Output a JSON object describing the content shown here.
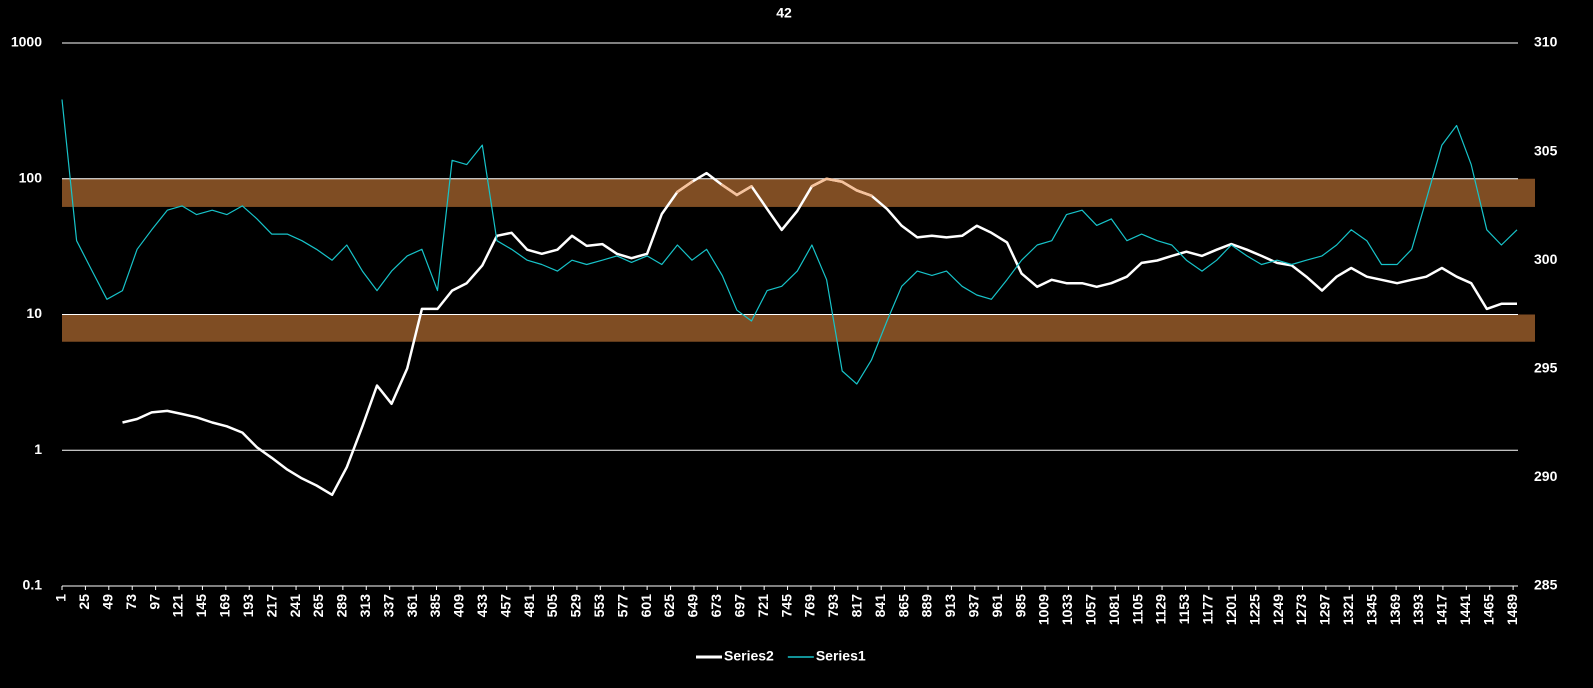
{
  "chart_data": {
    "type": "line",
    "title": "42",
    "x": [
      1,
      16,
      32,
      47,
      63,
      78,
      93,
      109,
      124,
      139,
      155,
      170,
      186,
      201,
      216,
      232,
      247,
      262,
      278,
      293,
      309,
      324,
      339,
      355,
      370,
      386,
      401,
      416,
      432,
      447,
      462,
      478,
      493,
      509,
      524,
      539,
      555,
      570,
      585,
      601,
      616,
      632,
      647,
      662,
      678,
      693,
      708,
      724,
      739,
      755,
      770,
      785,
      801,
      816,
      831,
      847,
      862,
      878,
      893,
      908,
      924,
      939,
      954,
      970,
      985,
      1001,
      1016,
      1031,
      1047,
      1062,
      1077,
      1093,
      1108,
      1124,
      1139,
      1154,
      1170,
      1185,
      1200,
      1216,
      1231,
      1247,
      1262,
      1277,
      1293,
      1308,
      1323,
      1339,
      1354,
      1370,
      1385,
      1400,
      1416,
      1431,
      1446,
      1462,
      1477,
      1493
    ],
    "series": [
      {
        "name": "Series2",
        "color": "#ffffff",
        "axis": "y",
        "values": [
          null,
          null,
          null,
          null,
          1.6,
          1.7,
          1.9,
          1.95,
          1.85,
          1.75,
          1.6,
          1.5,
          1.35,
          1.05,
          0.88,
          0.72,
          0.62,
          0.55,
          0.47,
          0.75,
          1.5,
          3.0,
          2.2,
          4,
          11,
          11,
          15,
          17,
          23,
          38,
          40,
          30,
          28,
          30,
          38,
          32,
          33,
          28,
          26,
          28,
          55,
          80,
          95,
          110,
          90,
          76,
          88,
          60,
          42,
          58,
          88,
          100,
          95,
          82,
          75,
          60,
          45,
          37,
          38,
          37,
          38,
          45,
          40,
          34,
          20,
          16,
          18,
          17,
          17,
          16,
          17,
          19,
          24,
          25,
          27,
          29,
          27,
          30,
          33,
          30,
          27,
          24,
          23,
          19,
          15,
          19,
          22,
          19,
          18,
          17,
          18,
          19,
          22,
          19,
          17,
          11,
          12,
          12
        ]
      },
      {
        "name": "Series1",
        "color": "#17c3c9",
        "axis": "y2",
        "values": [
          307.4,
          300.9,
          299.5,
          298.2,
          298.6,
          300.5,
          301.4,
          302.3,
          302.5,
          302.1,
          302.3,
          302.1,
          302.5,
          301.9,
          301.2,
          301.2,
          300.9,
          300.5,
          300.0,
          300.7,
          299.5,
          298.6,
          299.5,
          300.2,
          300.5,
          298.6,
          304.6,
          304.4,
          305.3,
          300.9,
          300.5,
          300.0,
          299.8,
          299.5,
          300.0,
          299.8,
          300.0,
          300.2,
          299.9,
          300.2,
          299.8,
          300.7,
          300.0,
          300.5,
          299.3,
          297.7,
          297.2,
          298.6,
          298.8,
          299.5,
          300.7,
          299.1,
          294.9,
          294.3,
          295.4,
          297.2,
          298.8,
          299.5,
          299.3,
          299.5,
          298.8,
          298.4,
          298.2,
          299.1,
          300.0,
          300.7,
          300.9,
          302.1,
          302.3,
          301.6,
          301.9,
          300.9,
          301.2,
          300.9,
          300.7,
          300.0,
          299.5,
          300.0,
          300.7,
          300.2,
          299.8,
          300.0,
          299.8,
          300.0,
          300.2,
          300.7,
          301.4,
          300.9,
          299.8,
          299.8,
          300.5,
          302.8,
          305.3,
          306.2,
          304.4,
          301.4,
          300.7,
          301.4
        ]
      }
    ],
    "xlim": [
      1,
      1494
    ],
    "xticks": [
      1,
      25,
      49,
      73,
      97,
      121,
      145,
      169,
      193,
      217,
      241,
      265,
      289,
      313,
      337,
      361,
      385,
      409,
      433,
      457,
      481,
      505,
      529,
      553,
      577,
      601,
      625,
      649,
      673,
      697,
      721,
      745,
      769,
      793,
      817,
      841,
      865,
      889,
      913,
      937,
      961,
      985,
      1009,
      1033,
      1057,
      1081,
      1105,
      1129,
      1153,
      1177,
      1201,
      1225,
      1249,
      1273,
      1297,
      1321,
      1345,
      1369,
      1393,
      1417,
      1441,
      1465,
      1489
    ],
    "ylim": [
      0.1,
      1000
    ],
    "yticks": [
      0.1,
      1,
      10,
      100,
      1000
    ],
    "ylog": true,
    "y2lim": [
      285,
      310
    ],
    "y2ticks": [
      285,
      290,
      295,
      300,
      305,
      310
    ],
    "grid": true,
    "legend": "bottom",
    "bands": [
      {
        "from": 62,
        "to": 100
      },
      {
        "from": 6.3,
        "to": 10
      }
    ],
    "band_color": "#7f4d23",
    "highlight_color": "#f6c29c"
  }
}
